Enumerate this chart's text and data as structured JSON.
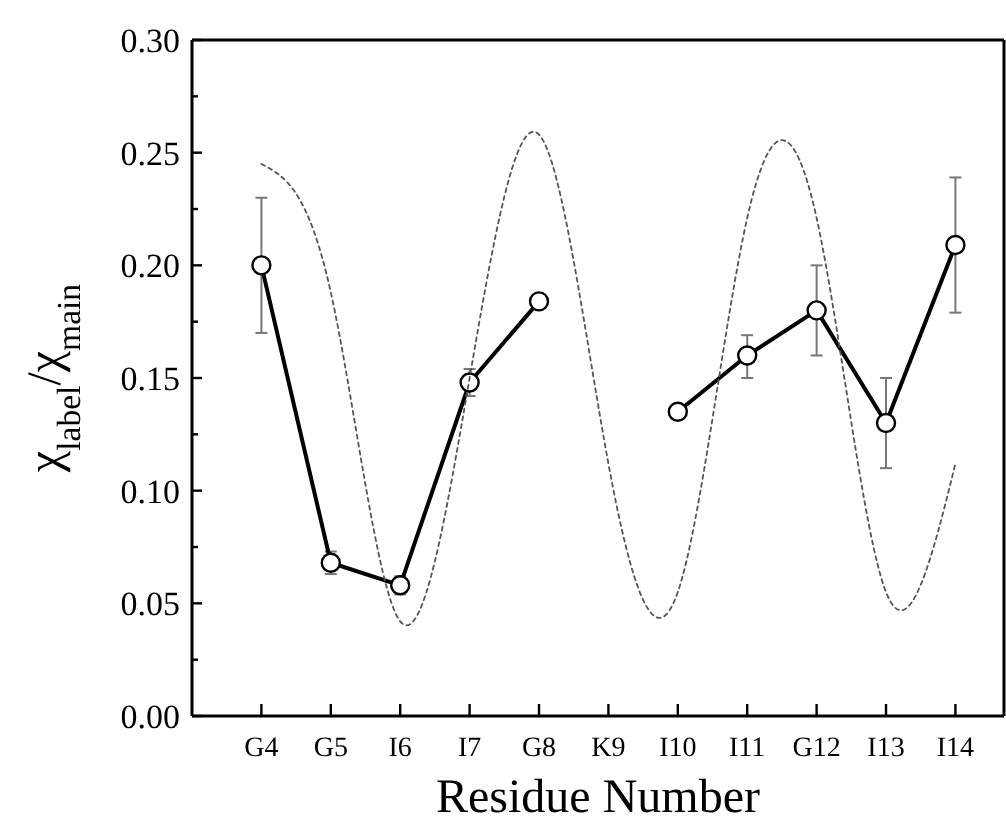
{
  "chart_data": {
    "type": "line",
    "xlabel": "Residue Number",
    "ylabel": "χ$_{label}$/χ$_{main}$",
    "categories": [
      "G4",
      "G5",
      "I6",
      "I7",
      "G8",
      "K9",
      "I10",
      "I11",
      "G12",
      "I13",
      "I14"
    ],
    "ylim": [
      0,
      0.3
    ],
    "yticks": [
      {
        "value": 0,
        "label": "0.00"
      },
      {
        "value": 0.025,
        "label": null
      },
      {
        "value": 0.05,
        "label": "0.05"
      },
      {
        "value": 0.075,
        "label": null
      },
      {
        "value": 0.1,
        "label": "0.10"
      },
      {
        "value": 0.125,
        "label": null
      },
      {
        "value": 0.15,
        "label": "0.15"
      },
      {
        "value": 0.175,
        "label": null
      },
      {
        "value": 0.2,
        "label": "0.20"
      },
      {
        "value": 0.225,
        "label": null
      },
      {
        "value": 0.25,
        "label": "0.25"
      },
      {
        "value": 0.275,
        "label": null
      },
      {
        "value": 0.3,
        "label": "0.30"
      }
    ],
    "grid": false,
    "series": [
      {
        "color": "#000000",
        "marker": "circle",
        "line_style": "solid",
        "values": [
          0.2,
          0.068,
          0.058,
          0.148,
          0.184,
          null,
          0.135,
          0.16,
          0.18,
          0.13,
          0.209
        ],
        "errors": [
          [
            0.17,
            0.23
          ],
          0.005,
          0.004,
          0.006,
          null,
          null,
          null,
          [
            0.15,
            0.169
          ],
          [
            0.16,
            0.2
          ],
          [
            0.11,
            0.15
          ],
          [
            0.179,
            0.239
          ]
        ]
      },
      {
        "color": "#555555",
        "marker": "none",
        "line_style": "dotted",
        "values": [
          0.245,
          0.188,
          0.042,
          0.15,
          0.258,
          0.112,
          0.055,
          0.221,
          0.221,
          0.055,
          0.112
        ]
      }
    ]
  }
}
